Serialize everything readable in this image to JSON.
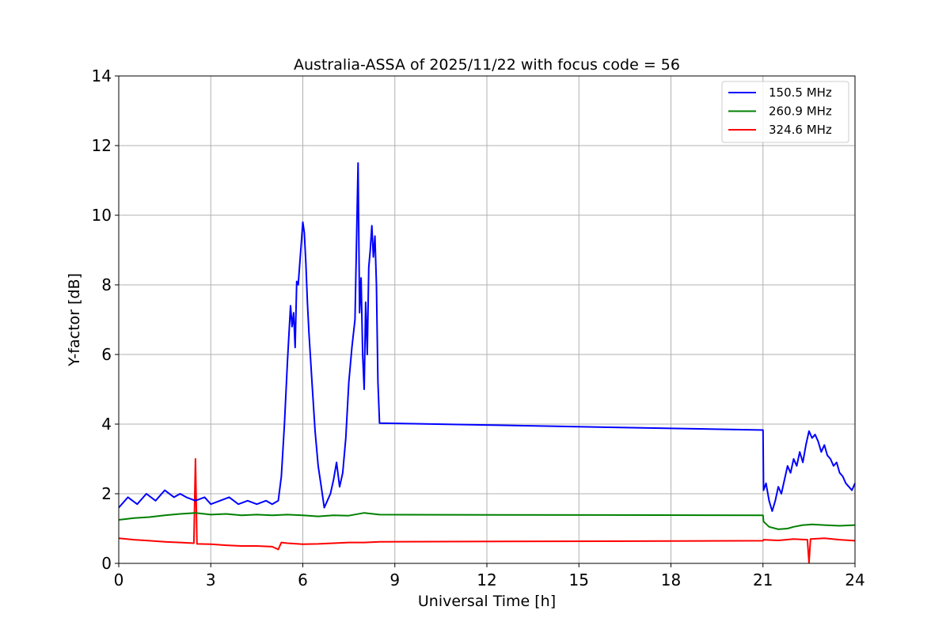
{
  "chart_data": {
    "type": "line",
    "title": "Australia-ASSA of 2025/11/22 with focus code = 56",
    "xlabel": "Universal Time [h]",
    "ylabel": "Y-factor [dB]",
    "xlim": [
      0,
      24
    ],
    "ylim": [
      0,
      14
    ],
    "xticks": [
      0,
      3,
      6,
      9,
      12,
      15,
      18,
      21,
      24
    ],
    "yticks": [
      0,
      2,
      4,
      6,
      8,
      10,
      12,
      14
    ],
    "grid": true,
    "legend_position": "top-right",
    "series": [
      {
        "name": "150.5 MHz",
        "color": "#0000ff",
        "x": [
          0.0,
          0.3,
          0.6,
          0.9,
          1.2,
          1.5,
          1.8,
          2.0,
          2.2,
          2.5,
          2.8,
          3.0,
          3.3,
          3.6,
          3.9,
          4.2,
          4.5,
          4.8,
          5.0,
          5.2,
          5.3,
          5.4,
          5.5,
          5.6,
          5.65,
          5.7,
          5.75,
          5.8,
          5.85,
          5.9,
          5.95,
          6.0,
          6.05,
          6.1,
          6.15,
          6.2,
          6.3,
          6.4,
          6.5,
          6.6,
          6.7,
          6.8,
          6.9,
          7.0,
          7.1,
          7.2,
          7.3,
          7.4,
          7.5,
          7.6,
          7.7,
          7.8,
          7.85,
          7.9,
          7.95,
          8.0,
          8.05,
          8.1,
          8.15,
          8.2,
          8.25,
          8.3,
          8.35,
          8.4,
          8.45,
          8.5,
          8.52,
          21.0,
          21.02,
          21.1,
          21.2,
          21.3,
          21.4,
          21.5,
          21.6,
          21.7,
          21.8,
          21.9,
          22.0,
          22.1,
          22.2,
          22.3,
          22.4,
          22.5,
          22.6,
          22.7,
          22.8,
          22.9,
          23.0,
          23.1,
          23.2,
          23.3,
          23.4,
          23.5,
          23.6,
          23.7,
          23.8,
          23.9,
          24.0
        ],
        "y": [
          1.6,
          1.9,
          1.7,
          2.0,
          1.8,
          2.1,
          1.9,
          2.0,
          1.9,
          1.8,
          1.9,
          1.7,
          1.8,
          1.9,
          1.7,
          1.8,
          1.7,
          1.8,
          1.7,
          1.8,
          2.5,
          4.0,
          5.8,
          7.4,
          6.8,
          7.2,
          6.2,
          8.1,
          8.0,
          8.6,
          9.2,
          9.8,
          9.5,
          8.6,
          7.5,
          6.6,
          5.2,
          3.8,
          2.8,
          2.2,
          1.6,
          1.8,
          2.0,
          2.4,
          2.9,
          2.2,
          2.6,
          3.6,
          5.2,
          6.2,
          7.0,
          11.5,
          7.2,
          8.2,
          6.0,
          5.0,
          7.5,
          6.0,
          8.5,
          9.0,
          9.7,
          8.8,
          9.4,
          8.0,
          5.2,
          4.03,
          4.03,
          3.83,
          2.1,
          2.3,
          1.8,
          1.5,
          1.8,
          2.2,
          2.0,
          2.4,
          2.8,
          2.6,
          3.0,
          2.8,
          3.2,
          2.9,
          3.4,
          3.8,
          3.6,
          3.7,
          3.5,
          3.2,
          3.4,
          3.1,
          3.0,
          2.8,
          2.9,
          2.6,
          2.5,
          2.3,
          2.2,
          2.1,
          2.3
        ]
      },
      {
        "name": "260.9 MHz",
        "color": "#008000",
        "x": [
          0.0,
          0.5,
          1.0,
          1.5,
          2.0,
          2.5,
          3.0,
          3.5,
          4.0,
          4.5,
          5.0,
          5.5,
          6.0,
          6.5,
          7.0,
          7.5,
          8.0,
          8.5,
          21.0,
          21.02,
          21.2,
          21.5,
          21.8,
          22.0,
          22.3,
          22.6,
          23.0,
          23.5,
          24.0
        ],
        "y": [
          1.25,
          1.3,
          1.33,
          1.38,
          1.42,
          1.45,
          1.4,
          1.42,
          1.38,
          1.4,
          1.38,
          1.4,
          1.38,
          1.35,
          1.38,
          1.37,
          1.45,
          1.4,
          1.38,
          1.2,
          1.05,
          0.98,
          1.0,
          1.05,
          1.1,
          1.12,
          1.1,
          1.08,
          1.1
        ]
      },
      {
        "name": "324.6 MHz",
        "color": "#ff0000",
        "x": [
          0.0,
          0.5,
          1.0,
          1.5,
          2.0,
          2.45,
          2.5,
          2.55,
          3.0,
          3.5,
          4.0,
          4.5,
          5.0,
          5.2,
          5.3,
          5.5,
          6.0,
          6.5,
          7.0,
          7.5,
          8.0,
          8.5,
          21.0,
          21.02,
          21.5,
          22.0,
          22.45,
          22.5,
          22.55,
          23.0,
          23.5,
          24.0
        ],
        "y": [
          0.72,
          0.68,
          0.65,
          0.62,
          0.6,
          0.58,
          3.0,
          0.56,
          0.55,
          0.52,
          0.5,
          0.5,
          0.48,
          0.4,
          0.6,
          0.58,
          0.55,
          0.56,
          0.58,
          0.6,
          0.6,
          0.62,
          0.65,
          0.68,
          0.66,
          0.7,
          0.68,
          0.02,
          0.7,
          0.72,
          0.68,
          0.65
        ]
      }
    ]
  }
}
